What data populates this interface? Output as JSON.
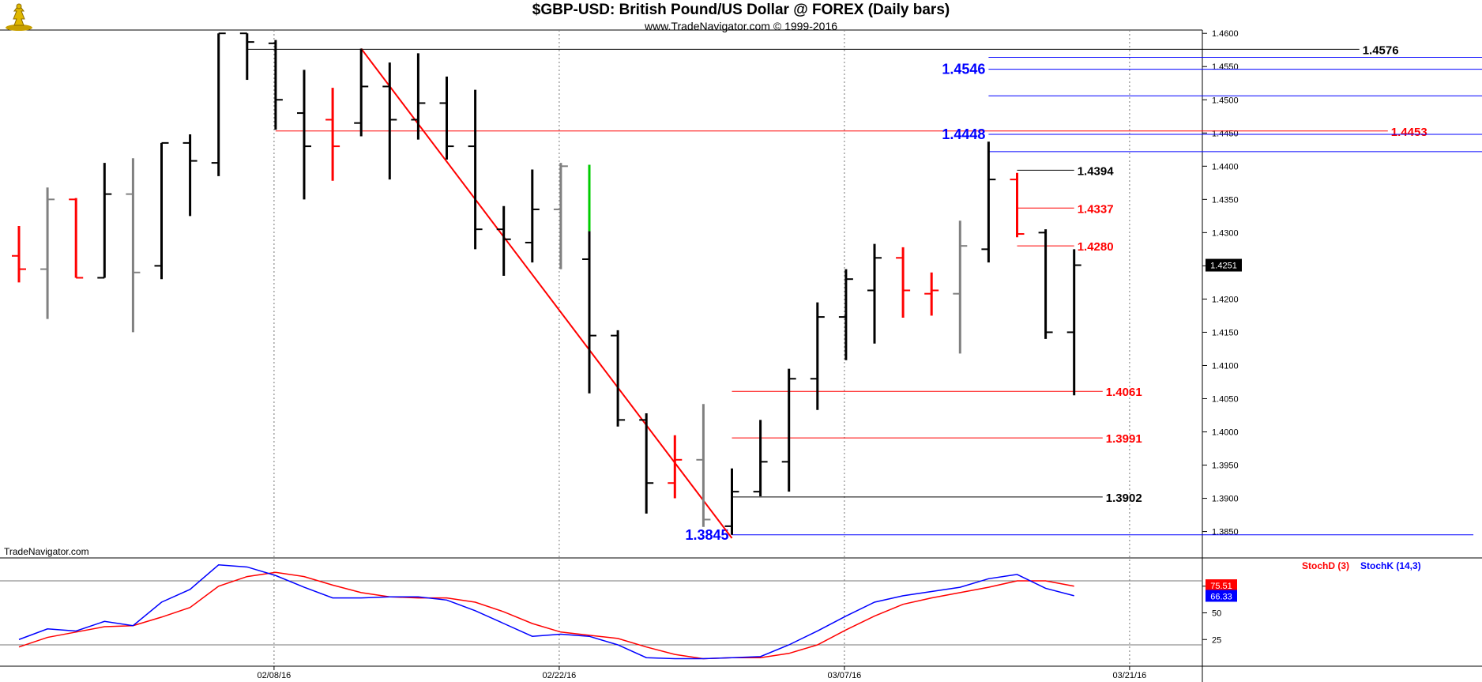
{
  "header": {
    "title": "$GBP-USD:  British Pound/US Dollar @ FOREX  (Daily bars)",
    "subtitle": "www.TradeNavigator.com © 1999-2016"
  },
  "watermark": "TradeNavigator.com",
  "colors": {
    "background": "#ffffff",
    "up_bar": "#000000",
    "down_bar": "#ff0000",
    "inside_bar": "#808080",
    "highlight_bar": "#00cc00",
    "fib_blue": "#0000ff",
    "fib_red": "#ff0000",
    "level_black": "#000000",
    "stoch_d": "#ff0000",
    "stoch_k": "#0000ff"
  },
  "chart_data": {
    "type": "ohlc",
    "x_axis_labels": [
      "02/08/16",
      "02/22/16",
      "03/07/16",
      "03/21/16"
    ],
    "y_axis": {
      "min": 1.3815,
      "max": 1.4605,
      "ticks": [
        "1.4600",
        "1.4550",
        "1.4500",
        "1.4450",
        "1.4400",
        "1.4350",
        "1.4300",
        "1.4250",
        "1.4200",
        "1.4150",
        "1.4100",
        "1.4050",
        "1.4000",
        "1.3950",
        "1.3900",
        "1.3850"
      ],
      "last_price_label": "1.4251"
    },
    "bars": [
      {
        "date": "01/26/16",
        "open": 1.4265,
        "high": 1.431,
        "low": 1.4225,
        "close": 1.4245,
        "color": "down"
      },
      {
        "date": "01/27/16",
        "open": 1.4245,
        "high": 1.4368,
        "low": 1.417,
        "close": 1.435,
        "color": "gray"
      },
      {
        "date": "01/28/16",
        "open": 1.435,
        "high": 1.4352,
        "low": 1.4232,
        "close": 1.4232,
        "color": "down"
      },
      {
        "date": "01/29/16",
        "open": 1.4232,
        "high": 1.4405,
        "low": 1.4232,
        "close": 1.4358,
        "color": "up"
      },
      {
        "date": "02/01/16",
        "open": 1.4358,
        "high": 1.4412,
        "low": 1.415,
        "close": 1.424,
        "color": "gray"
      },
      {
        "date": "02/02/16",
        "open": 1.425,
        "high": 1.4435,
        "low": 1.423,
        "close": 1.4435,
        "color": "up"
      },
      {
        "date": "02/03/16",
        "open": 1.4435,
        "high": 1.4448,
        "low": 1.4325,
        "close": 1.4408,
        "color": "up"
      },
      {
        "date": "02/04/16",
        "open": 1.4405,
        "high": 1.46,
        "low": 1.4385,
        "close": 1.46,
        "color": "up"
      },
      {
        "date": "02/05/16",
        "open": 1.46,
        "high": 1.46,
        "low": 1.453,
        "close": 1.4587,
        "color": "up"
      },
      {
        "date": "02/08/16",
        "open": 1.4585,
        "high": 1.459,
        "low": 1.4455,
        "close": 1.45,
        "color": "up"
      },
      {
        "date": "02/09/16",
        "open": 1.448,
        "high": 1.4545,
        "low": 1.435,
        "close": 1.443,
        "color": "up"
      },
      {
        "date": "02/10/16",
        "open": 1.447,
        "high": 1.4518,
        "low": 1.4378,
        "close": 1.443,
        "color": "down"
      },
      {
        "date": "02/11/16",
        "open": 1.4465,
        "high": 1.4577,
        "low": 1.4445,
        "close": 1.452,
        "color": "up"
      },
      {
        "date": "02/12/16",
        "open": 1.452,
        "high": 1.4556,
        "low": 1.438,
        "close": 1.447,
        "color": "up"
      },
      {
        "date": "02/15/16",
        "open": 1.447,
        "high": 1.457,
        "low": 1.444,
        "close": 1.4495,
        "color": "up"
      },
      {
        "date": "02/16/16",
        "open": 1.4495,
        "high": 1.4535,
        "low": 1.441,
        "close": 1.443,
        "color": "up"
      },
      {
        "date": "02/17/16",
        "open": 1.443,
        "high": 1.4515,
        "low": 1.4275,
        "close": 1.4305,
        "color": "up"
      },
      {
        "date": "02/18/16",
        "open": 1.4305,
        "high": 1.434,
        "low": 1.4235,
        "close": 1.429,
        "color": "up"
      },
      {
        "date": "02/19/16",
        "open": 1.4285,
        "high": 1.4395,
        "low": 1.4255,
        "close": 1.4335,
        "color": "up"
      },
      {
        "date": "02/22/16",
        "open": 1.4335,
        "high": 1.4405,
        "low": 1.4245,
        "close": 1.44,
        "color": "gray"
      },
      {
        "date": "02/23/16",
        "open": 1.426,
        "high": 1.4402,
        "low": 1.4058,
        "close": 1.4145,
        "color": "up",
        "highlight_top": 1.4302
      },
      {
        "date": "02/24/16",
        "open": 1.4145,
        "high": 1.4153,
        "low": 1.4008,
        "close": 1.4018,
        "color": "up"
      },
      {
        "date": "02/25/16",
        "open": 1.4018,
        "high": 1.4028,
        "low": 1.3877,
        "close": 1.3923,
        "color": "up"
      },
      {
        "date": "02/26/16",
        "open": 1.3923,
        "high": 1.3995,
        "low": 1.39,
        "close": 1.3958,
        "color": "down"
      },
      {
        "date": "02/29/16",
        "open": 1.3958,
        "high": 1.4042,
        "low": 1.3857,
        "close": 1.3868,
        "color": "gray"
      },
      {
        "date": "03/01/16",
        "open": 1.3858,
        "high": 1.3945,
        "low": 1.3845,
        "close": 1.391,
        "color": "up"
      },
      {
        "date": "03/02/16",
        "open": 1.391,
        "high": 1.4018,
        "low": 1.3903,
        "close": 1.3955,
        "color": "up"
      },
      {
        "date": "03/03/16",
        "open": 1.3955,
        "high": 1.4095,
        "low": 1.391,
        "close": 1.408,
        "color": "up"
      },
      {
        "date": "03/04/16",
        "open": 1.408,
        "high": 1.4195,
        "low": 1.4033,
        "close": 1.4173,
        "color": "up"
      },
      {
        "date": "03/07/16",
        "open": 1.4173,
        "high": 1.4245,
        "low": 1.4108,
        "close": 1.423,
        "color": "up"
      },
      {
        "date": "03/08/16",
        "open": 1.4213,
        "high": 1.4283,
        "low": 1.4133,
        "close": 1.4262,
        "color": "up"
      },
      {
        "date": "03/09/16",
        "open": 1.4262,
        "high": 1.4278,
        "low": 1.4172,
        "close": 1.4213,
        "color": "down"
      },
      {
        "date": "03/10/16",
        "open": 1.4208,
        "high": 1.424,
        "low": 1.4175,
        "close": 1.4213,
        "color": "down"
      },
      {
        "date": "03/11/16",
        "open": 1.4208,
        "high": 1.4318,
        "low": 1.4118,
        "close": 1.428,
        "color": "gray"
      },
      {
        "date": "03/14/16",
        "open": 1.4275,
        "high": 1.4437,
        "low": 1.4255,
        "close": 1.438,
        "color": "up"
      },
      {
        "date": "03/15/16",
        "open": 1.438,
        "high": 1.439,
        "low": 1.4293,
        "close": 1.4298,
        "color": "down"
      },
      {
        "date": "03/16/16",
        "open": 1.43,
        "high": 1.4305,
        "low": 1.414,
        "close": 1.415,
        "color": "up"
      },
      {
        "date": "03/17/16",
        "open": 1.415,
        "high": 1.4275,
        "low": 1.4055,
        "close": 1.4251,
        "color": "up"
      }
    ],
    "trendline": {
      "from": {
        "date": "02/11/16",
        "price": 1.4577
      },
      "to": {
        "date": "03/01/16",
        "price": 1.384
      }
    },
    "levels": [
      {
        "label": "1.4576",
        "value": 1.4576,
        "color": "black",
        "from": "02/05/16",
        "to": "03/31/16",
        "side": "right"
      },
      {
        "label": "1.4564",
        "value": 1.4564,
        "color": "blue",
        "from": "03/14/16",
        "to": "04/11/16",
        "side": "right"
      },
      {
        "label": "1.4546",
        "value": 1.4546,
        "color": "blue",
        "from": "03/14/16",
        "to": "04/11/16",
        "side": "left"
      },
      {
        "label": "1.4506",
        "value": 1.4506,
        "color": "blue",
        "from": "03/14/16",
        "to": "04/11/16",
        "side": "right"
      },
      {
        "label": "1.4453",
        "value": 1.4453,
        "color": "red",
        "from": "02/08/16",
        "to": "04/01/16",
        "side": "right"
      },
      {
        "label": "1.4448",
        "value": 1.4448,
        "color": "blue",
        "from": "03/14/16",
        "to": "04/11/16",
        "side": "left"
      },
      {
        "label": "1.4422",
        "value": 1.4422,
        "color": "blue",
        "from": "03/14/16",
        "to": "04/11/16",
        "side": "right"
      },
      {
        "label": "1.4394",
        "value": 1.4394,
        "color": "black",
        "from": "03/15/16",
        "to": "03/17/16",
        "side": "right"
      },
      {
        "label": "1.4337",
        "value": 1.4337,
        "color": "red",
        "from": "03/15/16",
        "to": "03/17/16",
        "side": "right"
      },
      {
        "label": "1.4280",
        "value": 1.428,
        "color": "red",
        "from": "03/15/16",
        "to": "03/17/16",
        "side": "right"
      },
      {
        "label": "1.4061",
        "value": 1.4061,
        "color": "red",
        "from": "03/01/16",
        "to": "03/18/16",
        "side": "right"
      },
      {
        "label": "1.3991",
        "value": 1.3991,
        "color": "red",
        "from": "03/01/16",
        "to": "03/18/16",
        "side": "right"
      },
      {
        "label": "1.3902",
        "value": 1.3902,
        "color": "black",
        "from": "03/01/16",
        "to": "03/18/16",
        "side": "right"
      },
      {
        "label": "1.3845",
        "value": 1.3845,
        "color": "blue",
        "from": "03/01/16",
        "to": "04/06/16",
        "side": "left"
      }
    ],
    "stochastic": {
      "legend_d": "StochD (3)",
      "legend_k": "StochK (14,3)",
      "d_label": "75.51",
      "k_label": "66.33",
      "ticks": [
        "75",
        "50",
        "25"
      ],
      "overbought": 80,
      "oversold": 20,
      "stoch_k": [
        25,
        35,
        33,
        42,
        38,
        60,
        72,
        95,
        93,
        85,
        74,
        64,
        64,
        65,
        65,
        62,
        52,
        40,
        28,
        30,
        28,
        20,
        8,
        7,
        7,
        8,
        9,
        20,
        33,
        47,
        60,
        66,
        70,
        74,
        82,
        86,
        73,
        66
      ],
      "stoch_d": [
        18,
        27,
        32,
        37,
        38,
        46,
        55,
        75,
        84,
        88,
        84,
        76,
        69,
        65,
        64,
        64,
        60,
        51,
        40,
        32,
        29,
        26,
        18,
        11,
        7,
        8,
        8,
        12,
        20,
        34,
        47,
        58,
        64,
        69,
        74,
        80,
        80,
        75
      ]
    }
  }
}
